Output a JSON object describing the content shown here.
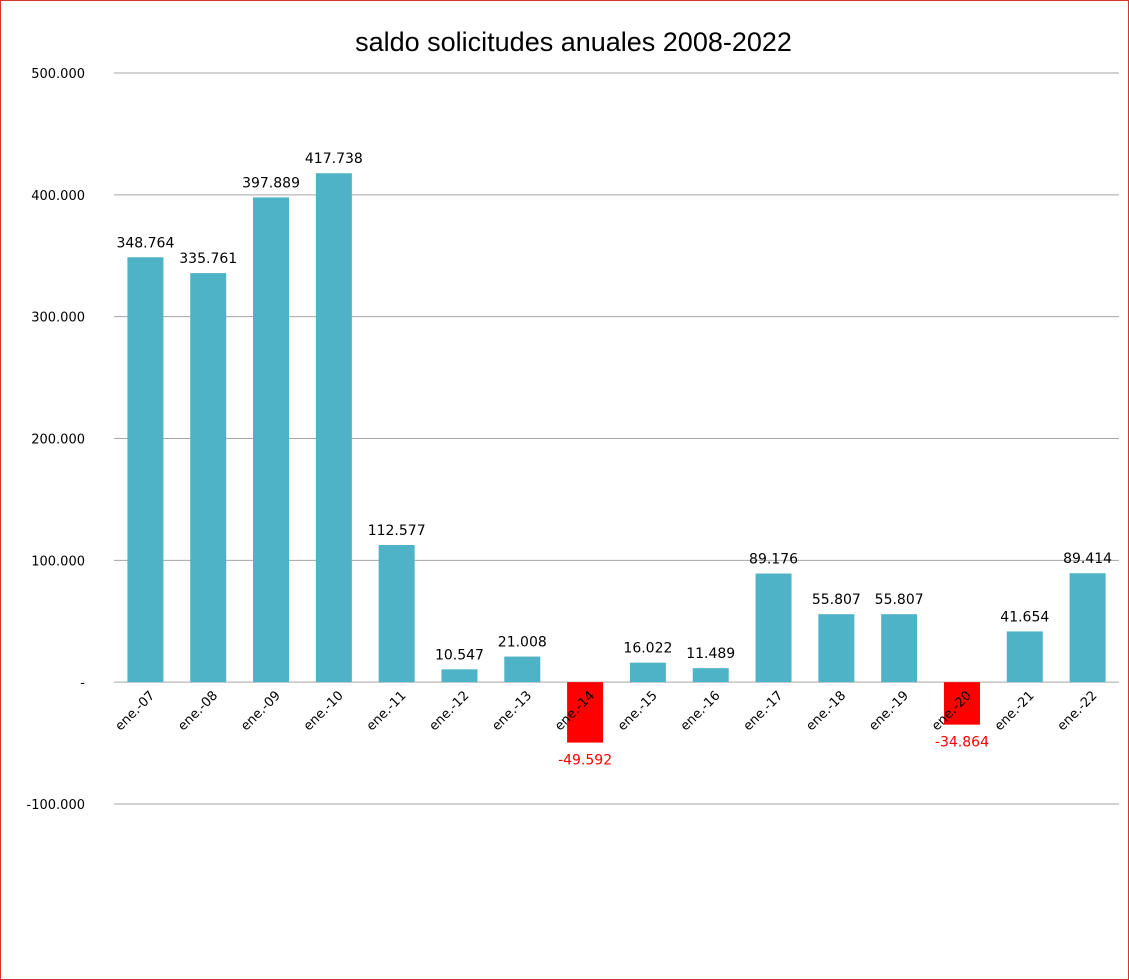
{
  "chart_data": {
    "type": "bar",
    "title": "saldo solicitudes anuales 2008-2022",
    "xlabel": "",
    "ylabel": "",
    "categories": [
      "ene.-07",
      "ene.-08",
      "ene.-09",
      "ene.-10",
      "ene.-11",
      "ene.-12",
      "ene.-13",
      "ene.-14",
      "ene.-15",
      "ene.-16",
      "ene.-17",
      "ene.-18",
      "ene.-19",
      "ene.-20",
      "ene.-21",
      "ene.-22"
    ],
    "values": [
      348764,
      335761,
      397889,
      417738,
      112577,
      10547,
      21008,
      -49592,
      16022,
      11489,
      89176,
      55807,
      55807,
      -34864,
      41654,
      89414
    ],
    "data_labels": [
      "348.764",
      "335.761",
      "397.889",
      "417.738",
      "112.577",
      "10.547",
      "21.008",
      "-49.592",
      "16.022",
      "11.489",
      "89.176",
      "55.807",
      "55.807",
      "-34.864",
      "41.654",
      "89.414"
    ],
    "ylim": [
      -100000,
      500000
    ],
    "y_ticks": [
      500000,
      400000,
      300000,
      200000,
      100000,
      0,
      -100000
    ],
    "y_tick_labels": [
      "500.000",
      "400.000",
      "300.000",
      "200.000",
      "100.000",
      "-",
      "-100.000"
    ],
    "grid": true,
    "legend": "none",
    "colors": {
      "positive": "#4fb3c8",
      "negative": "#ff0000",
      "grid": "#a6a6a6",
      "frame": "#d9342b",
      "label_positive": "#000000",
      "label_negative": "#ff0000"
    }
  }
}
